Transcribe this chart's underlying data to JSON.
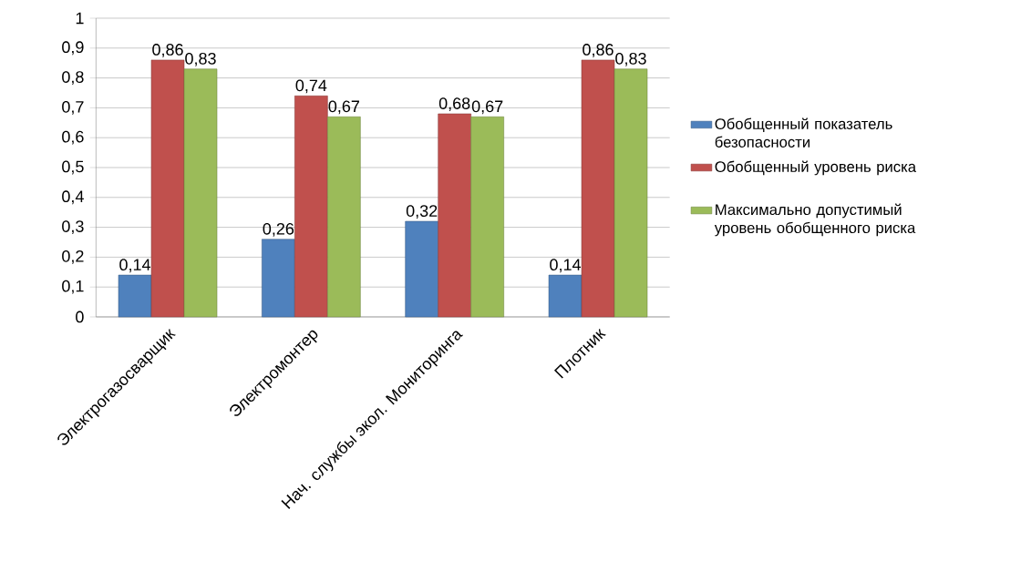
{
  "chart_data": {
    "type": "bar",
    "categories": [
      "Электрогазосварщик",
      "Электромонтер",
      "Нач. службы экол. Мониторинга",
      "Плотник"
    ],
    "series": [
      {
        "name": "Обобщенный показатель безопасности",
        "color": "#4f81bd",
        "values": [
          0.14,
          0.26,
          0.32,
          0.14
        ],
        "value_labels": [
          "0,14",
          "0,26",
          "0,32",
          "0,14"
        ]
      },
      {
        "name": "Обобщенный уровень риска",
        "color": "#c0504d",
        "values": [
          0.86,
          0.74,
          0.68,
          0.86
        ],
        "value_labels": [
          "0,86",
          "0,74",
          "0,68",
          "0,86"
        ]
      },
      {
        "name": "Максимально допустимый уровень обобщенного риска",
        "color": "#9bbb59",
        "values": [
          0.83,
          0.67,
          0.67,
          0.83
        ],
        "value_labels": [
          "0,83",
          "0,67",
          "0,67",
          "0,83"
        ]
      }
    ],
    "ylim": [
      0,
      1
    ],
    "yticks": [
      0,
      {
        "value": 0.1,
        "label": "0,1"
      },
      {
        "value": 0.2,
        "label": "0,2"
      },
      {
        "value": 0.3,
        "label": "0,3"
      },
      {
        "value": 0.4,
        "label": "0,4"
      },
      {
        "value": 0.5,
        "label": "0,5"
      },
      {
        "value": 0.6,
        "label": "0,6"
      },
      {
        "value": 0.7,
        "label": "0,7"
      },
      {
        "value": 0.8,
        "label": "0,8"
      },
      {
        "value": 0.9,
        "label": "0,9"
      },
      1
    ],
    "grid": "y",
    "legend": "right"
  }
}
